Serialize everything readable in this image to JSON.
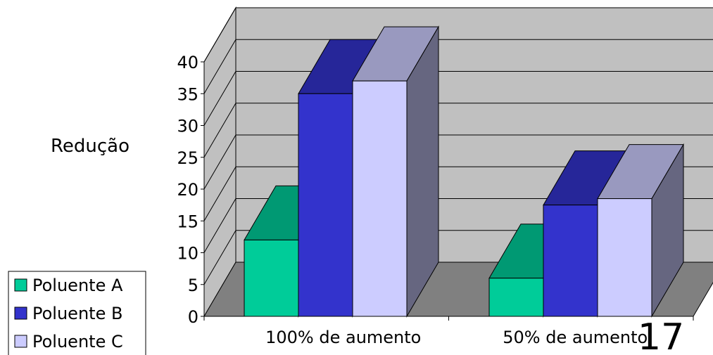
{
  "chart_data": {
    "type": "bar",
    "title": "",
    "xlabel": "",
    "ylabel": "Redução",
    "ylim": [
      0,
      40
    ],
    "yticks": [
      0,
      5,
      10,
      15,
      20,
      25,
      30,
      35,
      40
    ],
    "grid": true,
    "legend_position": "bottom-left",
    "categories": [
      "100% de aumento",
      "50% de aumento"
    ],
    "series": [
      {
        "name": "Poluente A",
        "values": [
          12,
          6
        ],
        "color": "#00cc99"
      },
      {
        "name": "Poluente B",
        "values": [
          35,
          17.5
        ],
        "color": "#3333cc"
      },
      {
        "name": "Poluente C",
        "values": [
          37,
          18.5
        ],
        "color": "#ccccff"
      }
    ]
  },
  "page_number": "17"
}
